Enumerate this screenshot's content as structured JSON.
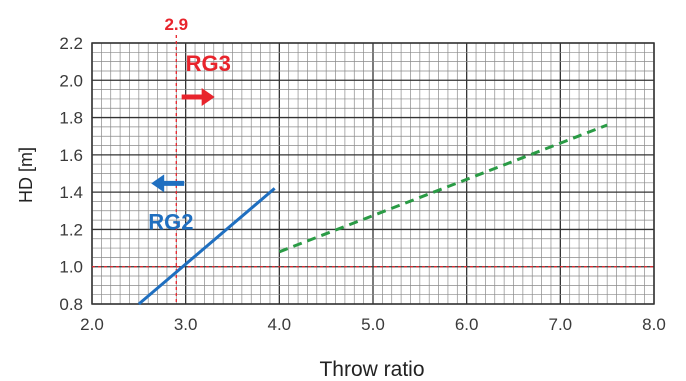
{
  "chart_data": {
    "type": "line",
    "title": "",
    "xlabel": "Throw ratio",
    "ylabel": "HD [m]",
    "xlim": [
      2.0,
      8.0
    ],
    "ylim": [
      0.8,
      2.2
    ],
    "x_ticks": [
      "2.0",
      "3.0",
      "4.0",
      "5.0",
      "6.0",
      "7.0",
      "8.0"
    ],
    "y_ticks": [
      "0.8",
      "1.0",
      "1.2",
      "1.4",
      "1.6",
      "1.8",
      "2.0",
      "2.2"
    ],
    "grid": true,
    "series": [
      {
        "color": "#1f6fc0",
        "style": "solid",
        "points": [
          [
            2.5,
            0.8
          ],
          [
            3.95,
            1.42
          ]
        ]
      },
      {
        "color": "#2a9b45",
        "style": "dashed",
        "points": [
          [
            4.0,
            1.08
          ],
          [
            7.5,
            1.76
          ]
        ]
      }
    ],
    "reference_lines": [
      {
        "axis": "x",
        "value": 2.9,
        "color": "#e8242c",
        "label": "2.9"
      },
      {
        "axis": "y",
        "value": 1.0,
        "color": "#e8242c"
      }
    ],
    "annotations": [
      {
        "text": "RG3",
        "color": "#e8242c",
        "arrow": "right",
        "x": 3.0,
        "y": 2.05
      },
      {
        "text": "RG2",
        "color": "#1f6fc0",
        "arrow": "left",
        "x": 2.6,
        "y": 1.2
      }
    ]
  }
}
